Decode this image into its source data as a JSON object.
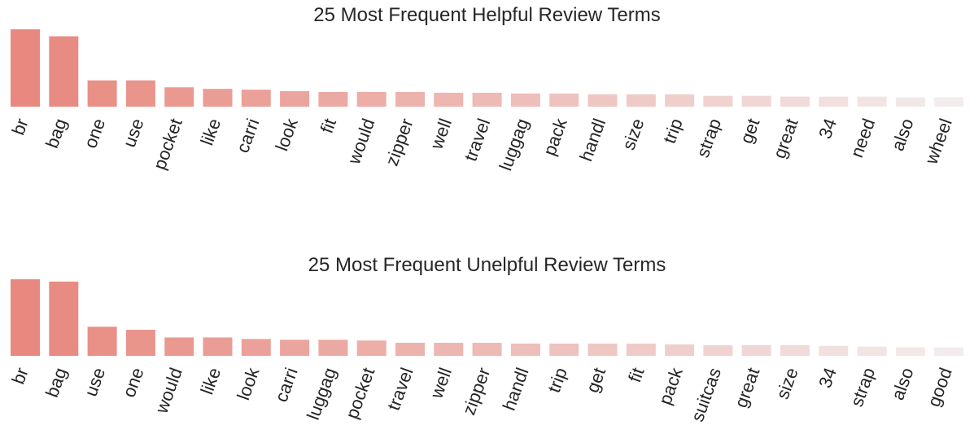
{
  "chart_data": [
    {
      "type": "bar",
      "title": "25 Most Frequent Helpful Review Terms",
      "xlabel": "",
      "ylabel": "",
      "grid": false,
      "legend": "none",
      "ylim": [
        0,
        1
      ],
      "categories": [
        "br",
        "bag",
        "one",
        "use",
        "pocket",
        "like",
        "carri",
        "look",
        "fit",
        "would",
        "zipper",
        "well",
        "travel",
        "luggag",
        "pack",
        "handl",
        "size",
        "trip",
        "strap",
        "get",
        "great",
        "34",
        "need",
        "also",
        "wheel"
      ],
      "values": [
        1.0,
        0.91,
        0.34,
        0.34,
        0.25,
        0.23,
        0.22,
        0.2,
        0.19,
        0.19,
        0.19,
        0.18,
        0.18,
        0.17,
        0.17,
        0.16,
        0.16,
        0.16,
        0.14,
        0.14,
        0.13,
        0.13,
        0.13,
        0.12,
        0.12
      ],
      "colors": {
        "start": "#e8887e",
        "end": "#f2ecec"
      }
    },
    {
      "type": "bar",
      "title": "25 Most Frequent Unelpful Review Terms",
      "xlabel": "",
      "ylabel": "",
      "grid": false,
      "legend": "none",
      "ylim": [
        0,
        1
      ],
      "categories": [
        "br",
        "bag",
        "use",
        "one",
        "would",
        "like",
        "look",
        "carri",
        "luggag",
        "pocket",
        "travel",
        "well",
        "zipper",
        "handl",
        "trip",
        "get",
        "fit",
        "pack",
        "suitcas",
        "great",
        "size",
        "34",
        "strap",
        "also",
        "good"
      ],
      "values": [
        1.0,
        0.97,
        0.38,
        0.34,
        0.24,
        0.24,
        0.22,
        0.21,
        0.21,
        0.2,
        0.17,
        0.17,
        0.17,
        0.16,
        0.16,
        0.16,
        0.16,
        0.15,
        0.14,
        0.14,
        0.14,
        0.13,
        0.12,
        0.11,
        0.11
      ],
      "colors": {
        "start": "#e8887e",
        "end": "#f2ecec"
      }
    }
  ]
}
